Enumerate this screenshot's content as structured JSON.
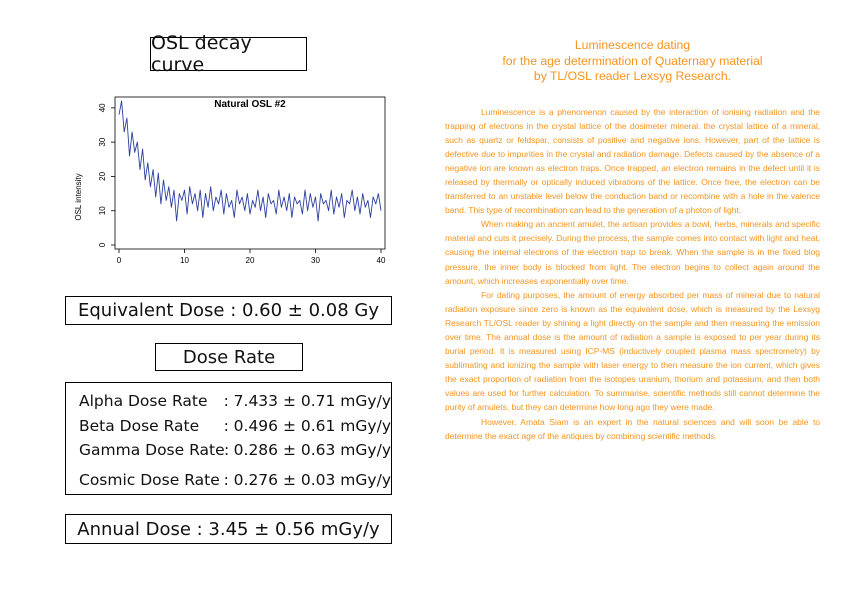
{
  "left": {
    "osl_title": "OSL decay curve",
    "equivalent_dose": "Equivalent Dose : 0.60 ± 0.08 Gy",
    "dose_rate_title": "Dose Rate",
    "rates": [
      {
        "name": "Alpha Dose Rate",
        "sep": ":",
        "value": "7.433 ± 0.71 mGy/y"
      },
      {
        "name": "Beta Dose Rate",
        "sep": ":",
        "value": "0.496 ± 0.61 mGy/y"
      },
      {
        "name": "Gamma Dose Rate",
        "sep": ":",
        "value": "0.286 ± 0.63 mGy/y"
      },
      {
        "name": "Cosmic Dose Rate",
        "sep": ":",
        "value": "0.276 ± 0.03 mGy/y"
      }
    ],
    "annual_dose": "Annual Dose : 3.45 ± 0.56 mGy/y"
  },
  "chart_data": {
    "type": "line",
    "title": "Natural OSL #2",
    "xlabel": "",
    "ylabel": "OSL intensity",
    "xlim": [
      0,
      40
    ],
    "ylim": [
      0,
      42
    ],
    "xticks": [
      "0",
      "10",
      "20",
      "30",
      "40"
    ],
    "yticks": [
      "0",
      "10",
      "20",
      "30",
      "40"
    ],
    "line_color": "#2c3fa0",
    "series": [
      {
        "x": [
          0.0,
          0.4,
          0.8,
          1.2,
          1.6,
          2.0,
          2.4,
          2.8,
          3.2,
          3.6,
          4.0,
          4.4,
          4.8,
          5.2,
          5.6,
          6.0,
          6.4,
          6.8,
          7.2,
          7.6,
          8.0,
          8.4,
          8.8,
          9.2,
          9.6,
          10.0,
          10.4,
          10.8,
          11.2,
          11.6,
          12.0,
          12.4,
          12.8,
          13.2,
          13.6,
          14.0,
          14.4,
          14.8,
          15.2,
          15.6,
          16.0,
          16.4,
          16.8,
          17.2,
          17.6,
          18.0,
          18.4,
          18.8,
          19.2,
          19.6,
          20.0,
          20.4,
          20.8,
          21.2,
          21.6,
          22.0,
          22.4,
          22.8,
          23.2,
          23.6,
          24.0,
          24.4,
          24.8,
          25.2,
          25.6,
          26.0,
          26.4,
          26.8,
          27.2,
          27.6,
          28.0,
          28.4,
          28.8,
          29.2,
          29.6,
          30.0,
          30.4,
          30.8,
          31.2,
          31.6,
          32.0,
          32.4,
          32.8,
          33.2,
          33.6,
          34.0,
          34.4,
          34.8,
          35.2,
          35.6,
          36.0,
          36.4,
          36.8,
          37.2,
          37.6,
          38.0,
          38.4,
          38.8,
          39.2,
          39.6,
          40.0
        ],
        "values": [
          38,
          42,
          33,
          37,
          26,
          33,
          27,
          30,
          22,
          28,
          19,
          24,
          17,
          22,
          14,
          21,
          12,
          19,
          13,
          17,
          11,
          16,
          7,
          15,
          13,
          16,
          9,
          17,
          12,
          15,
          10,
          16,
          8,
          15,
          11,
          17,
          10,
          14,
          12,
          16,
          9,
          15,
          11,
          13,
          8,
          16,
          12,
          14,
          10,
          15,
          9,
          13,
          11,
          16,
          10,
          14,
          8,
          15,
          12,
          13,
          9,
          16,
          11,
          14,
          10,
          15,
          8,
          14,
          12,
          13,
          9,
          16,
          10,
          15,
          11,
          14,
          7,
          15,
          12,
          13,
          10,
          16,
          9,
          14,
          11,
          15,
          8,
          13,
          12,
          16,
          10,
          14,
          9,
          15,
          11,
          13,
          8,
          14,
          12,
          15,
          10
        ]
      }
    ]
  },
  "right": {
    "title_lines": [
      "Luminescence dating",
      "for the age determination of Quaternary material",
      "by TL/OSL reader Lexsyg Research."
    ],
    "paragraphs": [
      "Luminescence is a phenomenon caused by the interaction of ionising radiation and the trapping of electrons in the crystal lattice of the dosimeter mineral. the crystal lattice of a mineral, such as quartz or feldspar, consists of positive and negative ions. However, part of the lattice is defective due to impurities in the crystal and radiation damage. Defects caused by the absence of a negative ion are known as electron traps. Once trapped, an electron remains in the defect until it is released by thermally or optically induced vibrations of the lattice. Once free, the electron can be transferred to an unstable level below the conduction band or recombine with a hole in the valence band. This type of recombination can lead to the generation of a photon of light.",
      "When making an ancient amulet, the artisan provides a bowl, herbs, minerals and specific material and cuts it precisely. During the process, the sample comes into contact with light and heat, causing the internal electrons of the electron trap to break. When the sample is in the fixed blog pressure, the inner body is blocked from light. The electron begins to collect again around the amount, which increases exponentially over time.",
      "For dating purposes, the amount of energy absorbed per mass of mineral due to natural radiation exposure since zero is known as the equivalent dose, which is measured by the Lexsyg Research TL/OSL reader by shining a light directly on the sample and then measuring the emission over time. The annual dose is the amount of radiation a sample is exposed to per year during its burial period. It is measured using ICP-MS (inductively coupled plasma mass spectrometry) by sublimating and ionizing the sample with laser energy to then measure the ion current, which gives the exact proportion of radiation from the isotopes uranium, thorium and potassium, and then both values are used for further calculation. To summarise, scientific methods still cannot determine the purity of amulets, but they can determine how long ago they were made.",
      "However, Amata Siam is an expert in the natural sciences and will soon be able to determine the exact age of the antiques by combining scientific methods."
    ]
  }
}
